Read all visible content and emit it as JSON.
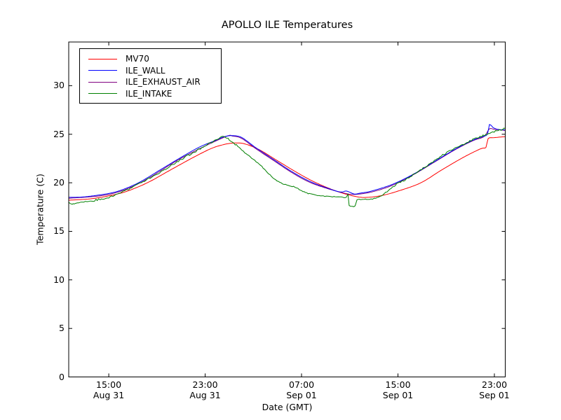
{
  "chart_data": {
    "type": "line",
    "title": "APOLLO ILE Temperatures",
    "xlabel": "Date (GMT)",
    "ylabel": "Temperature (C)",
    "x_unit": "hours since Aug 31 00:00 GMT",
    "xlim": [
      11.68,
      47.9
    ],
    "ylim": [
      0,
      34.5
    ],
    "grid": false,
    "legend_position": "upper-left",
    "background_color": "#ffffff",
    "frame_color": "#000000",
    "yticks": [
      0,
      5,
      10,
      15,
      20,
      25,
      30
    ],
    "xticks": [
      {
        "t": 15,
        "time": "15:00",
        "date": "Aug 31"
      },
      {
        "t": 23,
        "time": "23:00",
        "date": "Aug 31"
      },
      {
        "t": 31,
        "time": "07:00",
        "date": "Sep 01"
      },
      {
        "t": 39,
        "time": "15:00",
        "date": "Sep 01"
      },
      {
        "t": 47,
        "time": "23:00",
        "date": "Sep 01"
      }
    ],
    "draw_order": [
      0,
      2,
      1,
      3
    ],
    "series": [
      {
        "name": "MV70",
        "color": "#ff0000",
        "noisy": false,
        "points": [
          [
            11.68,
            18.2
          ],
          [
            13.5,
            18.35
          ],
          [
            15.0,
            18.65
          ],
          [
            16.45,
            19.1
          ],
          [
            18.2,
            20.0
          ],
          [
            19.95,
            21.2
          ],
          [
            21.7,
            22.4
          ],
          [
            23.45,
            23.5
          ],
          [
            24.6,
            23.95
          ],
          [
            25.5,
            24.1
          ],
          [
            26.3,
            24.0
          ],
          [
            27.5,
            23.4
          ],
          [
            28.96,
            22.3
          ],
          [
            30.42,
            21.2
          ],
          [
            31.87,
            20.2
          ],
          [
            33.33,
            19.4
          ],
          [
            34.49,
            18.9
          ],
          [
            35.65,
            18.55
          ],
          [
            36.5,
            18.5
          ],
          [
            37.7,
            18.7
          ],
          [
            39.15,
            19.2
          ],
          [
            40.9,
            20.0
          ],
          [
            42.6,
            21.3
          ],
          [
            44.4,
            22.6
          ],
          [
            45.85,
            23.5
          ],
          [
            46.3,
            23.65
          ],
          [
            46.48,
            24.55
          ],
          [
            47.0,
            24.65
          ],
          [
            47.87,
            24.75
          ]
        ]
      },
      {
        "name": "ILE_WALL",
        "color": "#0000ff",
        "noisy": false,
        "points": [
          [
            11.68,
            18.5
          ],
          [
            12.96,
            18.55
          ],
          [
            15.0,
            18.9
          ],
          [
            16.16,
            19.3
          ],
          [
            17.62,
            20.1
          ],
          [
            19.36,
            21.4
          ],
          [
            21.11,
            22.7
          ],
          [
            22.56,
            23.7
          ],
          [
            23.84,
            24.35
          ],
          [
            24.6,
            24.75
          ],
          [
            25.3,
            24.85
          ],
          [
            26.05,
            24.65
          ],
          [
            27.22,
            23.6
          ],
          [
            28.67,
            22.4
          ],
          [
            30.13,
            21.2
          ],
          [
            31.58,
            20.2
          ],
          [
            33.03,
            19.5
          ],
          [
            34.2,
            19.05
          ],
          [
            34.72,
            19.15
          ],
          [
            35.36,
            18.85
          ],
          [
            35.94,
            18.95
          ],
          [
            36.82,
            19.15
          ],
          [
            38.56,
            19.85
          ],
          [
            40.3,
            20.9
          ],
          [
            42.05,
            22.2
          ],
          [
            43.8,
            23.5
          ],
          [
            45.25,
            24.4
          ],
          [
            46.13,
            24.8
          ],
          [
            46.42,
            25.0
          ],
          [
            46.59,
            26.0
          ],
          [
            46.88,
            25.7
          ],
          [
            47.29,
            25.5
          ],
          [
            47.87,
            25.45
          ]
        ]
      },
      {
        "name": "ILE_EXHAUST_AIR",
        "color": "#800080",
        "noisy": false,
        "points": [
          [
            11.68,
            18.4
          ],
          [
            15.0,
            18.8
          ],
          [
            17.62,
            20.0
          ],
          [
            21.11,
            22.6
          ],
          [
            24.6,
            24.7
          ],
          [
            25.3,
            24.8
          ],
          [
            26.05,
            24.55
          ],
          [
            27.22,
            23.5
          ],
          [
            28.67,
            22.3
          ],
          [
            30.13,
            21.1
          ],
          [
            31.58,
            20.1
          ],
          [
            33.03,
            19.45
          ],
          [
            34.49,
            18.95
          ],
          [
            35.36,
            18.8
          ],
          [
            36.82,
            19.05
          ],
          [
            38.56,
            19.75
          ],
          [
            40.3,
            20.85
          ],
          [
            42.05,
            22.15
          ],
          [
            43.8,
            23.45
          ],
          [
            45.25,
            24.35
          ],
          [
            46.13,
            24.75
          ],
          [
            46.59,
            25.55
          ],
          [
            47.0,
            25.5
          ],
          [
            47.87,
            25.4
          ]
        ]
      },
      {
        "name": "ILE_INTAKE",
        "color": "#008000",
        "noisy": true,
        "noise_amp": 0.1,
        "points": [
          [
            11.68,
            18.0
          ],
          [
            11.97,
            17.8
          ],
          [
            12.4,
            17.95
          ],
          [
            13.6,
            18.15
          ],
          [
            15.0,
            18.5
          ],
          [
            16.45,
            19.2
          ],
          [
            18.2,
            20.35
          ],
          [
            19.95,
            21.6
          ],
          [
            21.7,
            22.9
          ],
          [
            23.15,
            23.9
          ],
          [
            24.0,
            24.45
          ],
          [
            24.5,
            24.75
          ],
          [
            24.9,
            24.55
          ],
          [
            25.5,
            23.95
          ],
          [
            26.3,
            23.1
          ],
          [
            27.5,
            21.9
          ],
          [
            28.96,
            20.2
          ],
          [
            30.42,
            19.55
          ],
          [
            31.3,
            19.0
          ],
          [
            31.87,
            18.8
          ],
          [
            32.6,
            18.65
          ],
          [
            33.9,
            18.55
          ],
          [
            34.7,
            18.5
          ],
          [
            34.85,
            18.85
          ],
          [
            34.95,
            17.7
          ],
          [
            35.45,
            17.6
          ],
          [
            35.6,
            18.25
          ],
          [
            36.2,
            18.3
          ],
          [
            37.4,
            18.5
          ],
          [
            38.56,
            19.6
          ],
          [
            39.7,
            20.4
          ],
          [
            41.2,
            21.6
          ],
          [
            42.6,
            22.75
          ],
          [
            44.1,
            23.8
          ],
          [
            45.55,
            24.6
          ],
          [
            46.7,
            25.15
          ],
          [
            47.3,
            25.4
          ],
          [
            47.87,
            25.6
          ]
        ]
      }
    ]
  }
}
